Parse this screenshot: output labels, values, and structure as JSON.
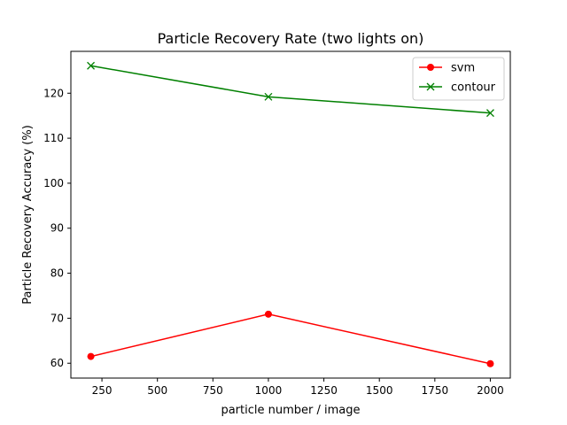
{
  "chart_data": {
    "type": "line",
    "title": "Particle Recovery Rate (two lights on)",
    "xlabel": "particle number / image",
    "ylabel": "Particle Recovery Accuracy (%)",
    "x": [
      200,
      1000,
      2000
    ],
    "xlim": [
      110,
      2090
    ],
    "ylim": [
      56.7,
      129.3
    ],
    "xticks": [
      250,
      500,
      750,
      1000,
      1250,
      1500,
      1750,
      2000
    ],
    "yticks": [
      60,
      70,
      80,
      90,
      100,
      110,
      120
    ],
    "grid": false,
    "legend_position": "top-right",
    "series": [
      {
        "name": "svm",
        "values": [
          61.5,
          70.9,
          59.9
        ],
        "color": "#ff0000",
        "marker": "circle"
      },
      {
        "name": "contour",
        "values": [
          126.1,
          119.2,
          115.6
        ],
        "color": "#008000",
        "marker": "x"
      }
    ]
  }
}
